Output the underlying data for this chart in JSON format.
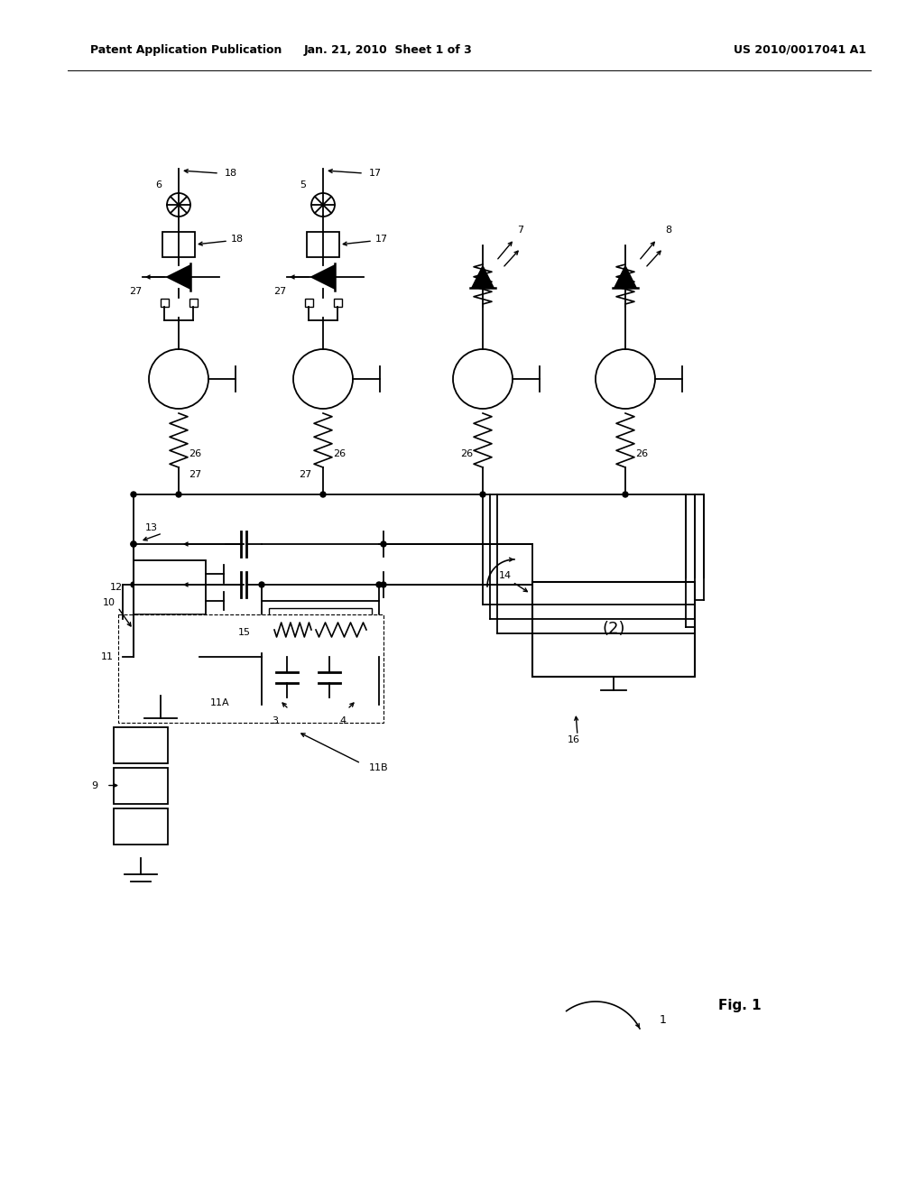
{
  "bg_color": "#ffffff",
  "header_left": "Patent Application Publication",
  "header_mid": "Jan. 21, 2010  Sheet 1 of 3",
  "header_right": "US 2010/0017041 A1",
  "fig_label": "Fig. 1",
  "figsize": [
    10.24,
    13.2
  ],
  "dpi": 100
}
